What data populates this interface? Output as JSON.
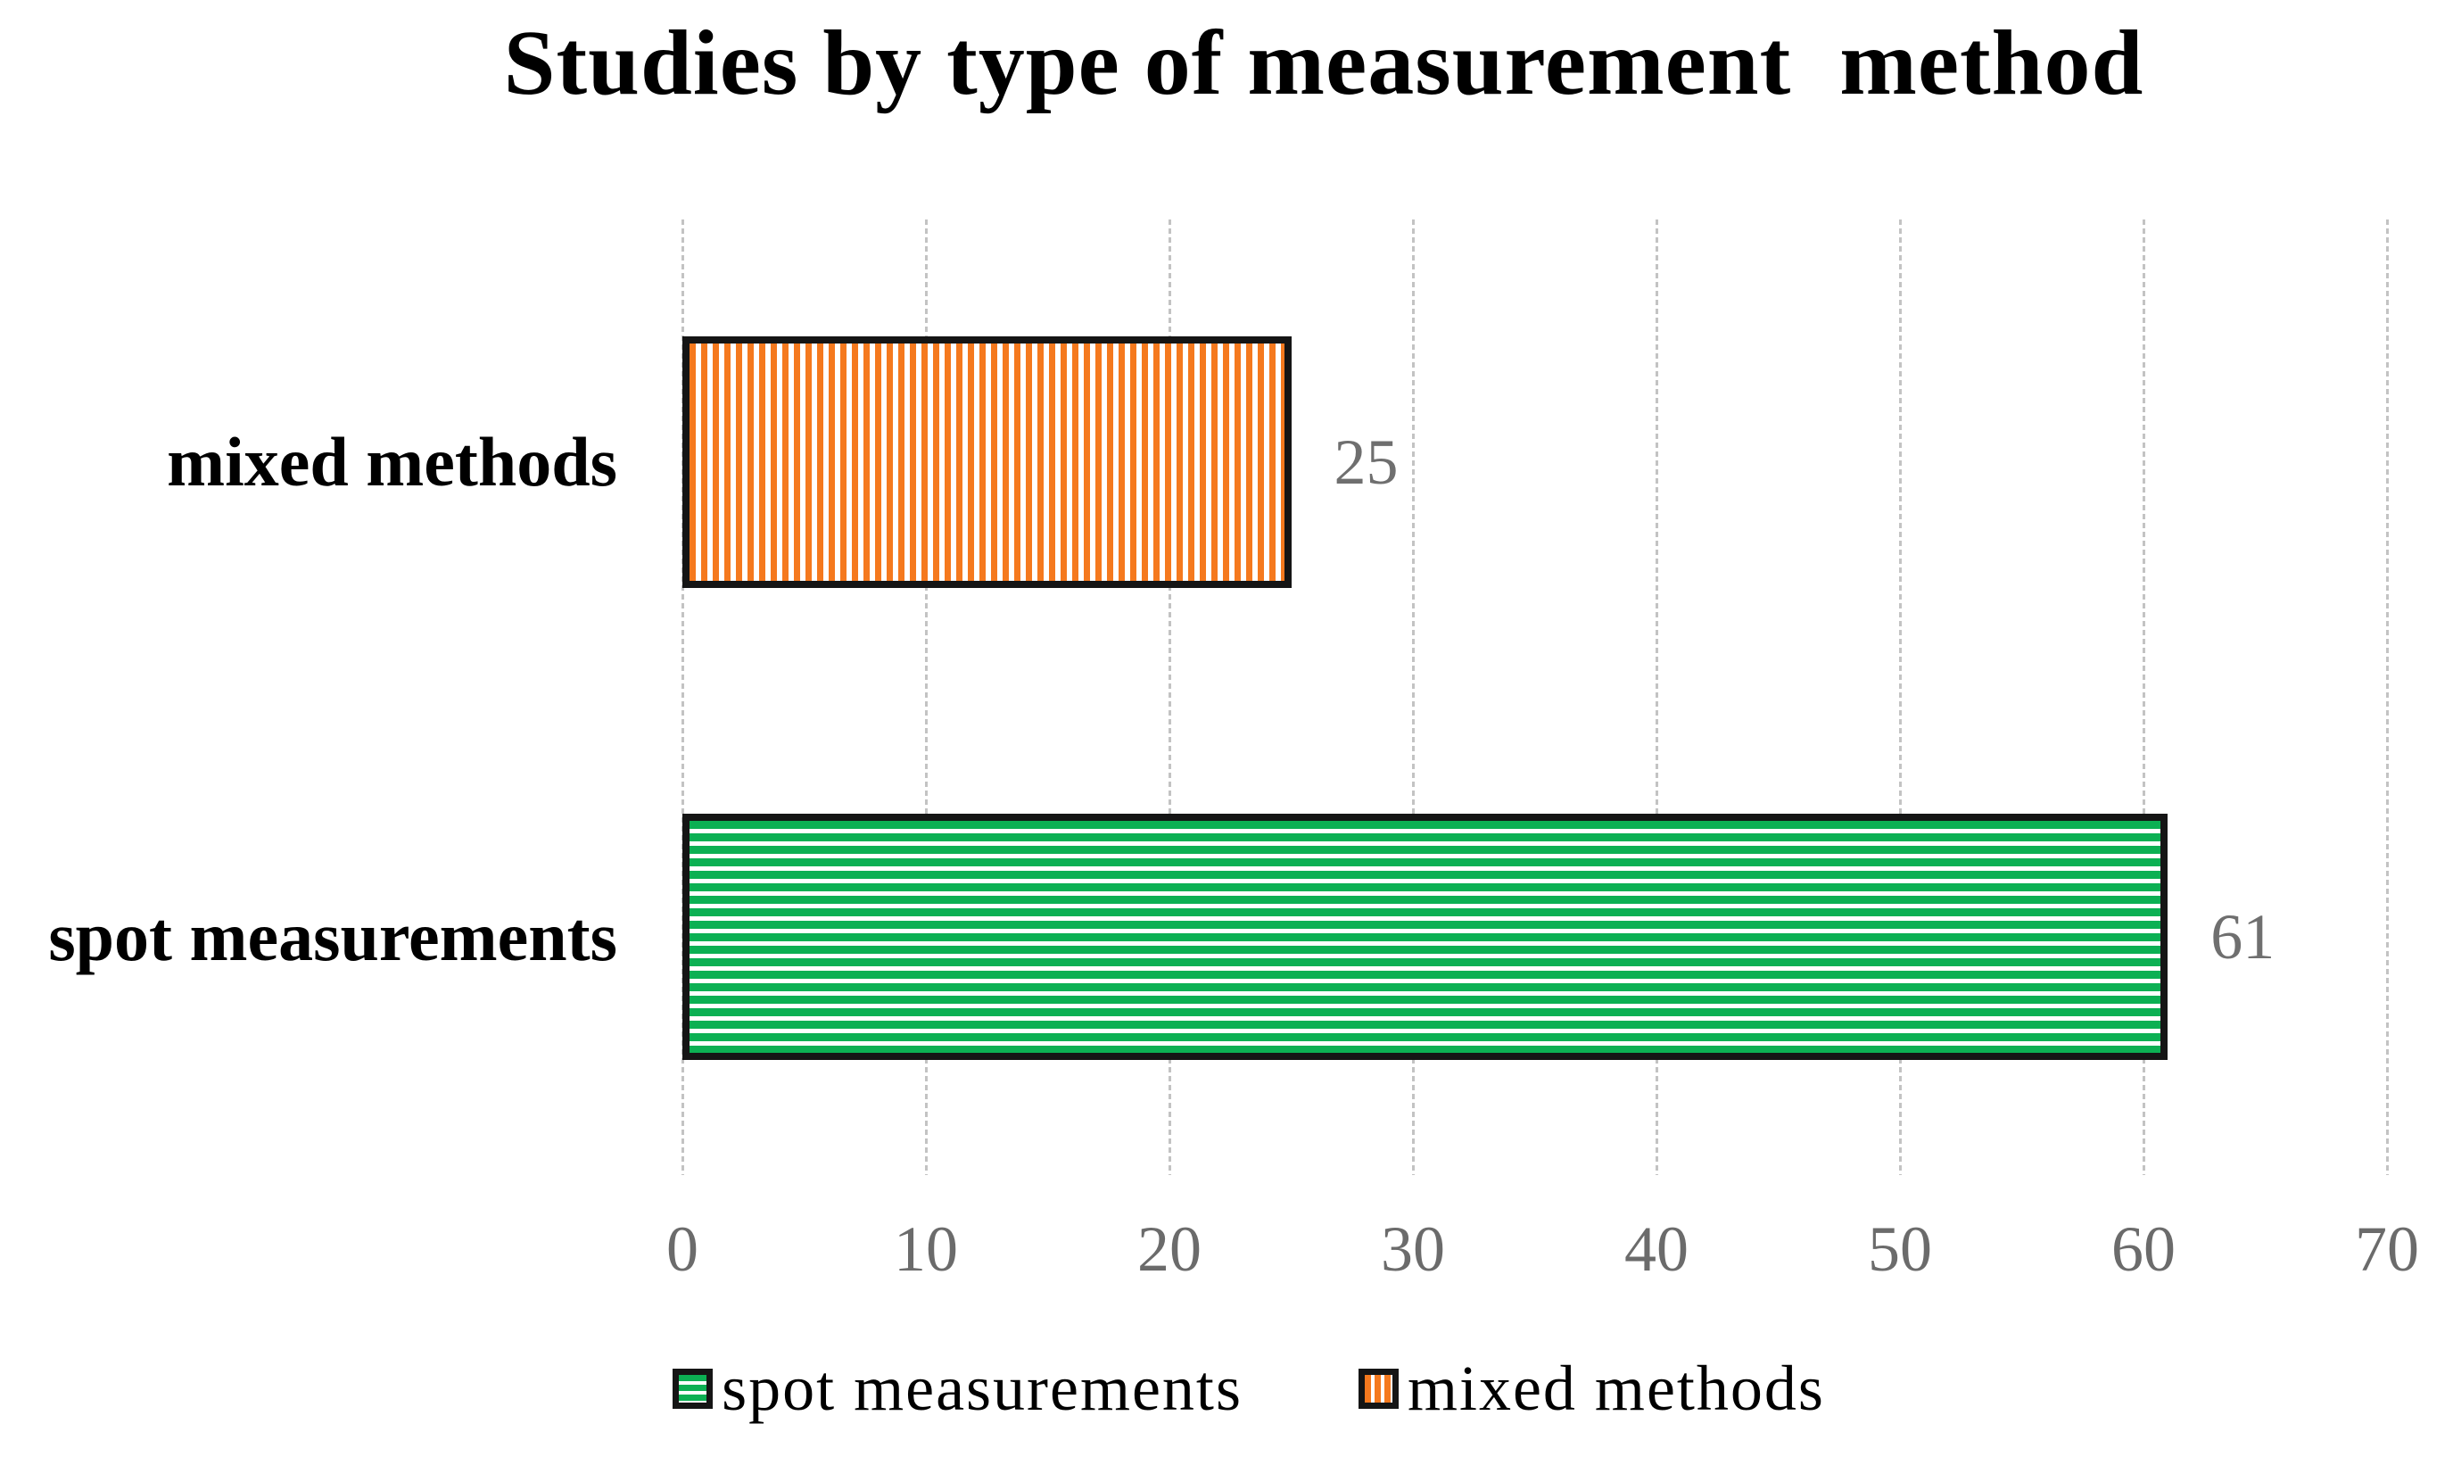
{
  "title": "Studies by type of measurement  method",
  "chart_data": {
    "type": "bar",
    "orientation": "horizontal",
    "title": "Studies by type of measurement  method",
    "categories": [
      "mixed methods",
      "spot measurements"
    ],
    "values": [
      25,
      61
    ],
    "xlabel": "",
    "ylabel": "",
    "xlim": [
      0,
      70
    ],
    "xticks": [
      0,
      10,
      20,
      30,
      40,
      50,
      60,
      70
    ],
    "grid": "vertical-dashed",
    "legend_position": "bottom",
    "rows": [
      {
        "category": "mixed methods",
        "value": 25,
        "data_label": "25",
        "fill_color": "#F5791E",
        "pattern": "vertical-stripes",
        "border_color": "#151515"
      },
      {
        "category": "spot measurements",
        "value": 61,
        "data_label": "61",
        "fill_color": "#0CB053",
        "pattern": "horizontal-stripes",
        "border_color": "#151515"
      }
    ]
  },
  "legend": {
    "items": [
      {
        "label": "spot measurements",
        "swatch_color": "#0CB053",
        "pattern": "horizontal-stripes"
      },
      {
        "label": "mixed methods",
        "swatch_color": "#F5791E",
        "pattern": "vertical-stripes"
      }
    ]
  },
  "colors": {
    "background": "#FFFFFF",
    "gridline": "#C3C3C3",
    "tick_labels": "#6B6B6B",
    "data_labels": "#6F6F6F",
    "title": "#000000",
    "bar_border": "#151515"
  }
}
